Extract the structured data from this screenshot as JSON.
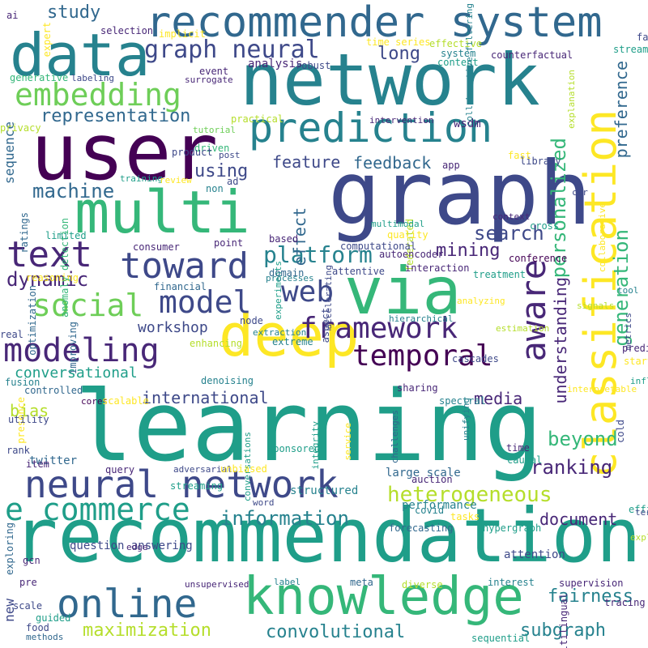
{
  "palette": {
    "v0": "#440154",
    "v1": "#482777",
    "v2": "#3e4989",
    "v3": "#31688e",
    "v4": "#26828e",
    "v5": "#1f9e89",
    "v6": "#35b779",
    "v7": "#6ece58",
    "v8": "#b5de2b",
    "v9": "#fde725"
  },
  "words": [
    {
      "text": "learning",
      "c": "v5",
      "r": 0
    },
    {
      "text": "recommendation",
      "c": "v5",
      "r": 0
    },
    {
      "text": "graph",
      "c": "v2",
      "r": 0
    },
    {
      "text": "network",
      "c": "v4",
      "r": 0
    },
    {
      "text": "user",
      "c": "v0",
      "r": 0
    },
    {
      "text": "recommender system",
      "c": "v3",
      "r": 0
    },
    {
      "text": "data",
      "c": "v4",
      "r": 0
    },
    {
      "text": "multi",
      "c": "v6",
      "r": 0
    },
    {
      "text": "via",
      "c": "v6",
      "r": 0
    },
    {
      "text": "deep",
      "c": "v9",
      "r": 0
    },
    {
      "text": "knowledge",
      "c": "v6",
      "r": 0
    },
    {
      "text": "classification",
      "c": "v9",
      "r": 1
    },
    {
      "text": "prediction",
      "c": "v4",
      "r": 0
    },
    {
      "text": "neural network",
      "c": "v2",
      "r": 0
    },
    {
      "text": "toward",
      "c": "v2",
      "r": 0
    },
    {
      "text": "online",
      "c": "v3",
      "r": 0
    },
    {
      "text": "e commerce",
      "c": "v5",
      "r": 0
    },
    {
      "text": "modeling",
      "c": "v1",
      "r": 0
    },
    {
      "text": "aware",
      "c": "v1",
      "r": 1
    },
    {
      "text": "framework",
      "c": "v1",
      "r": 0
    },
    {
      "text": "embedding",
      "c": "v7",
      "r": 0
    },
    {
      "text": "text",
      "c": "v1",
      "r": 0
    },
    {
      "text": "temporal",
      "c": "v0",
      "r": 0
    },
    {
      "text": "social",
      "c": "v7",
      "r": 0
    },
    {
      "text": "model",
      "c": "v2",
      "r": 0
    },
    {
      "text": "web",
      "c": "v2",
      "r": 0
    },
    {
      "text": "graph neural",
      "c": "v2",
      "r": 0
    },
    {
      "text": "platform",
      "c": "v4",
      "r": 0
    },
    {
      "text": "heterogeneous",
      "c": "v8",
      "r": 0
    },
    {
      "text": "information",
      "c": "v4",
      "r": 0
    },
    {
      "text": "convolutional",
      "c": "v4",
      "r": 0
    },
    {
      "text": "maximization",
      "c": "v8",
      "r": 0
    },
    {
      "text": "generation",
      "c": "v6",
      "r": 1
    },
    {
      "text": "personalized",
      "c": "v6",
      "r": 1
    },
    {
      "text": "preference",
      "c": "v3",
      "r": 1
    },
    {
      "text": "ranking",
      "c": "v1",
      "r": 0
    },
    {
      "text": "beyond",
      "c": "v6",
      "r": 0
    },
    {
      "text": "fairness",
      "c": "v4",
      "r": 0
    },
    {
      "text": "subgraph",
      "c": "v4",
      "r": 0
    },
    {
      "text": "search",
      "c": "v2",
      "r": 0
    },
    {
      "text": "mining",
      "c": "v1",
      "r": 0
    },
    {
      "text": "media",
      "c": "v1",
      "r": 0
    },
    {
      "text": "document",
      "c": "v1",
      "r": 0
    },
    {
      "text": "understanding",
      "c": "v1",
      "r": 1
    },
    {
      "text": "machine",
      "c": "v3",
      "r": 0
    },
    {
      "text": "dynamic",
      "c": "v1",
      "r": 0
    },
    {
      "text": "feedback",
      "c": "v3",
      "r": 0
    },
    {
      "text": "representation",
      "c": "v3",
      "r": 0
    },
    {
      "text": "conversational",
      "c": "v5",
      "r": 0
    },
    {
      "text": "international",
      "c": "v2",
      "r": 0
    },
    {
      "text": "workshop",
      "c": "v2",
      "r": 0
    },
    {
      "text": "using",
      "c": "v2",
      "r": 0
    },
    {
      "text": "long",
      "c": "v2",
      "r": 0
    },
    {
      "text": "study",
      "c": "v3",
      "r": 0
    },
    {
      "text": "feature",
      "c": "v2",
      "r": 0
    },
    {
      "text": "effect",
      "c": "v3",
      "r": 1
    },
    {
      "text": "sequence",
      "c": "v3",
      "r": 1
    },
    {
      "text": "bias",
      "c": "v8",
      "r": 0
    },
    {
      "text": "new",
      "c": "v2",
      "r": 1
    },
    {
      "text": "question answering",
      "c": "v2",
      "r": 0
    },
    {
      "text": "structured",
      "c": "v4",
      "r": 0
    },
    {
      "text": "twitter",
      "c": "v3",
      "r": 0
    },
    {
      "text": "large scale",
      "c": "v3",
      "r": 0
    },
    {
      "text": "performance",
      "c": "v4",
      "r": 0
    },
    {
      "text": "attention",
      "c": "v2",
      "r": 0
    },
    {
      "text": "wsdm",
      "c": "v1",
      "r": 0
    },
    {
      "text": "time series",
      "c": "v9",
      "r": 0
    },
    {
      "text": "effective",
      "c": "v8",
      "r": 0
    },
    {
      "text": "analysis",
      "c": "v1",
      "r": 0
    },
    {
      "text": "robust",
      "c": "v2",
      "r": 0
    },
    {
      "text": "content",
      "c": "v5",
      "r": 0
    },
    {
      "text": "system",
      "c": "v4",
      "r": 0
    },
    {
      "text": "counterfactual",
      "c": "v1",
      "r": 0
    },
    {
      "text": "streams",
      "c": "v5",
      "r": 0
    },
    {
      "text": "fair",
      "c": "v2",
      "r": 0
    },
    {
      "text": "cross",
      "c": "v5",
      "r": 0
    },
    {
      "text": "explanation",
      "c": "v8",
      "r": 1
    },
    {
      "text": "collaborative",
      "c": "v9",
      "r": 1
    },
    {
      "text": "collaborative filtering",
      "c": "v4",
      "r": 1
    },
    {
      "text": "expert",
      "c": "v9",
      "r": 1
    },
    {
      "text": "selection",
      "c": "v1",
      "r": 0
    },
    {
      "text": "implicit",
      "c": "v9",
      "r": 0
    },
    {
      "text": "ai",
      "c": "v1",
      "r": 0
    },
    {
      "text": "event",
      "c": "v1",
      "r": 0
    },
    {
      "text": "surrogate",
      "c": "v1",
      "r": 0
    },
    {
      "text": "generative",
      "c": "v6",
      "r": 0
    },
    {
      "text": "labeling",
      "c": "v2",
      "r": 0
    },
    {
      "text": "practical",
      "c": "v8",
      "r": 0
    },
    {
      "text": "intervention",
      "c": "v1",
      "r": 0
    },
    {
      "text": "privacy",
      "c": "v8",
      "r": 0
    },
    {
      "text": "tutorial",
      "c": "v7",
      "r": 0
    },
    {
      "text": "driven",
      "c": "v6",
      "r": 0
    },
    {
      "text": "product",
      "c": "v2",
      "r": 0
    },
    {
      "text": "post",
      "c": "v2",
      "r": 0
    },
    {
      "text": "fast",
      "c": "v9",
      "r": 0
    },
    {
      "text": "library",
      "c": "v2",
      "r": 0
    },
    {
      "text": "app",
      "c": "v1",
      "r": 0
    },
    {
      "text": "training",
      "c": "v5",
      "r": 0
    },
    {
      "text": "review",
      "c": "v9",
      "r": 0
    },
    {
      "text": "non",
      "c": "v4",
      "r": 0
    },
    {
      "text": "ad",
      "c": "v2",
      "r": 0
    },
    {
      "text": "ctr",
      "c": "v2",
      "r": 0
    },
    {
      "text": "ratings",
      "c": "v3",
      "r": 1
    },
    {
      "text": "reasoning",
      "c": "v9",
      "r": 0
    },
    {
      "text": "anomaly detection",
      "c": "v6",
      "r": 1
    },
    {
      "text": "based",
      "c": "v1",
      "r": 0
    },
    {
      "text": "experiments",
      "c": "v5",
      "r": 1
    },
    {
      "text": "accelerating",
      "c": "v2",
      "r": 1
    },
    {
      "text": "federated",
      "c": "v8",
      "r": 1
    },
    {
      "text": "context",
      "c": "v1",
      "r": 0
    },
    {
      "text": "multimodal",
      "c": "v5",
      "r": 0
    },
    {
      "text": "limited",
      "c": "v5",
      "r": 0
    },
    {
      "text": "point",
      "c": "v1",
      "r": 0
    },
    {
      "text": "quality",
      "c": "v9",
      "r": 0
    },
    {
      "text": "consumer",
      "c": "v1",
      "r": 0
    },
    {
      "text": "computational",
      "c": "v2",
      "r": 0
    },
    {
      "text": "conference",
      "c": "v0",
      "r": 0
    },
    {
      "text": "autoencoder",
      "c": "v1",
      "r": 0
    },
    {
      "text": "domain",
      "c": "v3",
      "r": 0
    },
    {
      "text": "attentive",
      "c": "v2",
      "r": 0
    },
    {
      "text": "interaction",
      "c": "v1",
      "r": 0
    },
    {
      "text": "treatment",
      "c": "v5",
      "r": 0
    },
    {
      "text": "tool",
      "c": "v4",
      "r": 0
    },
    {
      "text": "optimization",
      "c": "v3",
      "r": 1
    },
    {
      "text": "financial",
      "c": "v3",
      "r": 0
    },
    {
      "text": "processes",
      "c": "v4",
      "r": 0
    },
    {
      "text": "analyzing",
      "c": "v9",
      "r": 0
    },
    {
      "text": "signals",
      "c": "v8",
      "r": 0
    },
    {
      "text": "metrics",
      "c": "v2",
      "r": 1
    },
    {
      "text": "aspect",
      "c": "v2",
      "r": 1
    },
    {
      "text": "hierarchical",
      "c": "v4",
      "r": 0
    },
    {
      "text": "estimation",
      "c": "v8",
      "r": 0
    },
    {
      "text": "improving",
      "c": "v3",
      "r": 1
    },
    {
      "text": "real",
      "c": "v2",
      "r": 0
    },
    {
      "text": "node",
      "c": "v2",
      "r": 0
    },
    {
      "text": "extraction",
      "c": "v4",
      "r": 0
    },
    {
      "text": "extreme",
      "c": "v4",
      "r": 0
    },
    {
      "text": "enhancing",
      "c": "v8",
      "r": 0
    },
    {
      "text": "predict",
      "c": "v1",
      "r": 0
    },
    {
      "text": "start",
      "c": "v9",
      "r": 0
    },
    {
      "text": "fusion",
      "c": "v4",
      "r": 0
    },
    {
      "text": "controlled",
      "c": "v3",
      "r": 0
    },
    {
      "text": "denoising",
      "c": "v4",
      "r": 0
    },
    {
      "text": "cascades",
      "c": "v2",
      "r": 0
    },
    {
      "text": "influence",
      "c": "v5",
      "r": 0
    },
    {
      "text": "presence",
      "c": "v9",
      "r": 1
    },
    {
      "text": "cores",
      "c": "v0",
      "r": 0
    },
    {
      "text": "scalable",
      "c": "v9",
      "r": 0
    },
    {
      "text": "sharing",
      "c": "v1",
      "r": 0
    },
    {
      "text": "spectral",
      "c": "v4",
      "r": 0
    },
    {
      "text": "utility",
      "c": "v2",
      "r": 0
    },
    {
      "text": "interpretable",
      "c": "v9",
      "r": 0
    },
    {
      "text": "conversations",
      "c": "v5",
      "r": 1
    },
    {
      "text": "integrity",
      "c": "v5",
      "r": 1
    },
    {
      "text": "service",
      "c": "v9",
      "r": 1
    },
    {
      "text": "challenges",
      "c": "v3",
      "r": 1
    },
    {
      "text": "unifying",
      "c": "v4",
      "r": 1
    },
    {
      "text": "cold",
      "c": "v2",
      "r": 1
    },
    {
      "text": "rank",
      "c": "v2",
      "r": 0
    },
    {
      "text": "sponsored",
      "c": "v5",
      "r": 0
    },
    {
      "text": "time",
      "c": "v1",
      "r": 0
    },
    {
      "text": "causal",
      "c": "v5",
      "r": 0
    },
    {
      "text": "item",
      "c": "v1",
      "r": 0
    },
    {
      "text": "query",
      "c": "v1",
      "r": 0
    },
    {
      "text": "adversarial",
      "c": "v2",
      "r": 0
    },
    {
      "text": "unbiased",
      "c": "v9",
      "r": 0
    },
    {
      "text": "auction",
      "c": "v1",
      "r": 0
    },
    {
      "text": "streaming",
      "c": "v5",
      "r": 0
    },
    {
      "text": "word",
      "c": "v2",
      "r": 0
    },
    {
      "text": "covid",
      "c": "v4",
      "r": 0
    },
    {
      "text": "tasks",
      "c": "v9",
      "r": 0
    },
    {
      "text": "efficient",
      "c": "v5",
      "r": 0
    },
    {
      "text": "term",
      "c": "v2",
      "r": 0
    },
    {
      "text": "exploring",
      "c": "v3",
      "r": 1
    },
    {
      "text": "forecasting",
      "c": "v3",
      "r": 0
    },
    {
      "text": "hypergraph",
      "c": "v5",
      "r": 0
    },
    {
      "text": "edge",
      "c": "v1",
      "r": 0
    },
    {
      "text": "gcn",
      "c": "v1",
      "r": 0
    },
    {
      "text": "pre",
      "c": "v1",
      "r": 0
    },
    {
      "text": "unsupervised",
      "c": "v1",
      "r": 0
    },
    {
      "text": "label",
      "c": "v4",
      "r": 0
    },
    {
      "text": "meta",
      "c": "v3",
      "r": 0
    },
    {
      "text": "diverse",
      "c": "v8",
      "r": 0
    },
    {
      "text": "interest",
      "c": "v4",
      "r": 0
    },
    {
      "text": "supervision",
      "c": "v1",
      "r": 0
    },
    {
      "text": "explainable",
      "c": "v8",
      "r": 0
    },
    {
      "text": "multilingual",
      "c": "v1",
      "r": 1
    },
    {
      "text": "tracing",
      "c": "v1",
      "r": 0
    },
    {
      "text": "scale",
      "c": "v2",
      "r": 0
    },
    {
      "text": "guided",
      "c": "v5",
      "r": 0
    },
    {
      "text": "food",
      "c": "v2",
      "r": 0
    },
    {
      "text": "methods",
      "c": "v3",
      "r": 0
    },
    {
      "text": "sequential",
      "c": "v5",
      "r": 0
    },
    {
      "text": "transaction",
      "c": "v2",
      "r": 0
    }
  ]
}
